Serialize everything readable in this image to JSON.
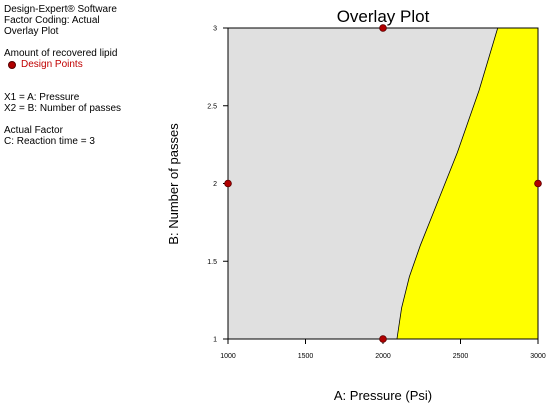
{
  "info": {
    "software": "Design-Expert® Software",
    "factor_coding": "Factor Coding: Actual",
    "plot_name": "Overlay Plot",
    "response": "Amount of recovered lipid",
    "legend_label": "Design Points",
    "x1": "X1 = A: Pressure",
    "x2": "X2 = B: Number of passes",
    "actual_factor_heading": "Actual Factor",
    "actual_factor": "C: Reaction time = 3"
  },
  "colors": {
    "feasible": "#ffff00",
    "infeasible": "#e0e0e0",
    "points": "#b00000",
    "legend_text": "#c00000"
  },
  "chart_data": {
    "type": "area",
    "title": "Overlay Plot",
    "xlabel": "A: Pressure (Psi)",
    "ylabel": "B: Number of passes",
    "xlim": [
      1000,
      3000
    ],
    "ylim": [
      1,
      3
    ],
    "xticks": [
      1000,
      1500,
      2000,
      2500,
      3000
    ],
    "yticks": [
      1,
      1.5,
      2,
      2.5,
      3
    ],
    "ytick_labels": [
      "1",
      "1.5",
      "2",
      "2.5",
      "3"
    ],
    "grid": false,
    "boundary": {
      "name": "Amount of recovered lipid",
      "points": [
        [
          2090,
          1.0
        ],
        [
          2120,
          1.2
        ],
        [
          2170,
          1.4
        ],
        [
          2240,
          1.6
        ],
        [
          2320,
          1.8
        ],
        [
          2400,
          2.0
        ],
        [
          2480,
          2.2
        ],
        [
          2550,
          2.4
        ],
        [
          2620,
          2.6
        ],
        [
          2680,
          2.8
        ],
        [
          2740,
          3.0
        ]
      ]
    },
    "design_points": [
      [
        1000,
        2
      ],
      [
        2000,
        3
      ],
      [
        2000,
        1
      ],
      [
        3000,
        2
      ]
    ]
  }
}
